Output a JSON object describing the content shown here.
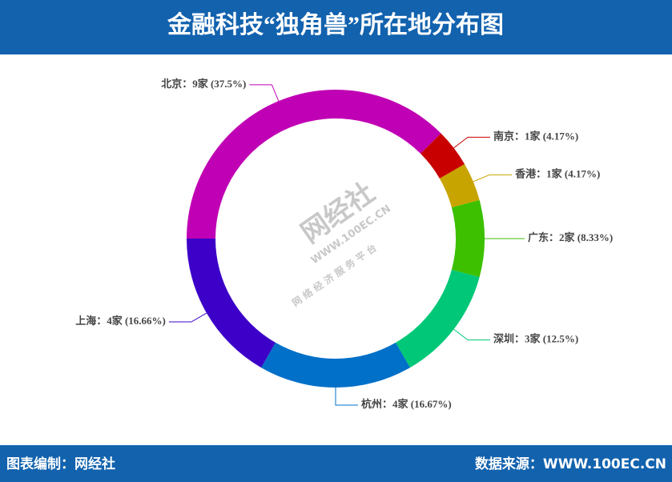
{
  "chart_data": {
    "type": "donut",
    "title": "金融科技“独角兽”所在地分布图",
    "values": [
      9,
      1,
      1,
      2,
      3,
      4,
      4
    ],
    "value_labels": [
      "北京：9家 (37.5%)",
      "南京：1家 (4.17%)",
      "香港：1家 (4.17%)",
      "广东：2家 (8.33%)",
      "深圳：3家 (12.5%)",
      "杭州：4家 (16.67%)",
      "上海：4家 (16.66%)"
    ],
    "colors": [
      "#c000b4",
      "#c80000",
      "#c8a400",
      "#3cc000",
      "#00c878",
      "#0070c8",
      "#3c00c8"
    ]
  },
  "watermark": {
    "brand": "网经社",
    "site": "WWW.100EC.CN",
    "slogan": "网 络 经 济 服 务 平 台"
  },
  "footer": {
    "left": "图表编制：网经社",
    "right": "数据来源：WWW.100EC.CN"
  }
}
